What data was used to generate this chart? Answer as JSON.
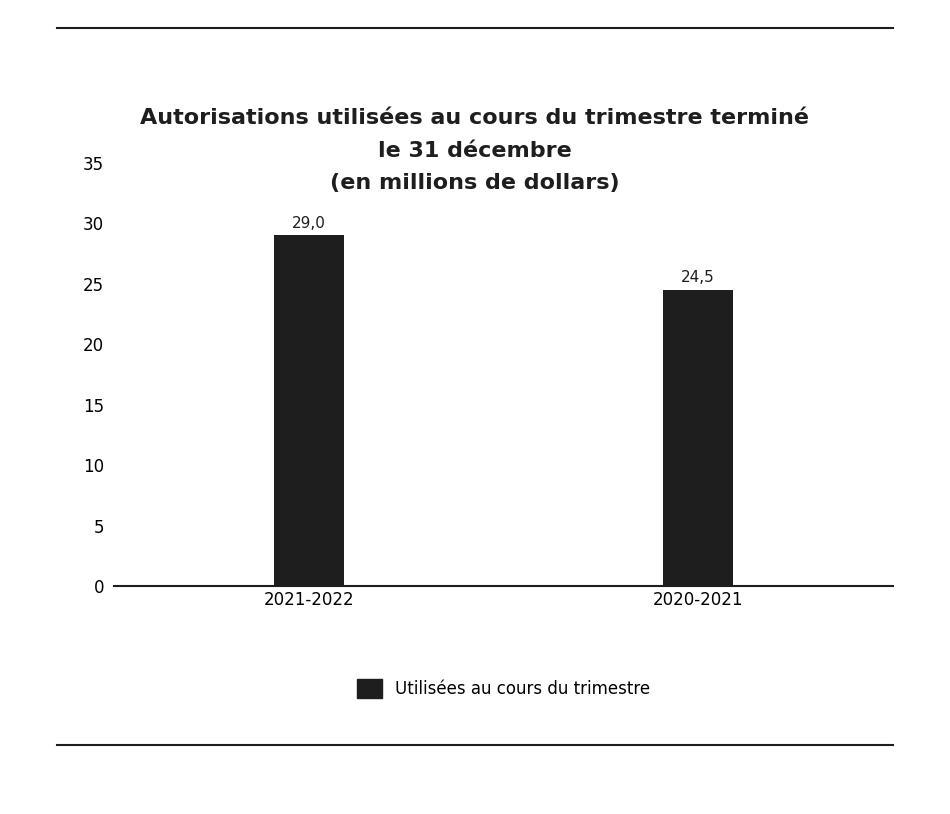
{
  "title_line1": "Autorisations utilisées au cours du trimestre terminé",
  "title_line2": "le 31 décembre",
  "title_line3": "(en millions de dollars)",
  "categories": [
    "2021-2022",
    "2020-2021"
  ],
  "values": [
    29.0,
    24.5
  ],
  "bar_labels": [
    "29,0",
    "24,5"
  ],
  "bar_color": "#1e1e1e",
  "legend_label": "Utilisées au cours du trimestre",
  "ylim": [
    0,
    35
  ],
  "yticks": [
    0,
    5,
    10,
    15,
    20,
    25,
    30,
    35
  ],
  "background_color": "#ffffff",
  "title_fontsize": 16,
  "tick_fontsize": 12,
  "bar_label_fontsize": 11,
  "legend_fontsize": 12,
  "bar_width": 0.18
}
